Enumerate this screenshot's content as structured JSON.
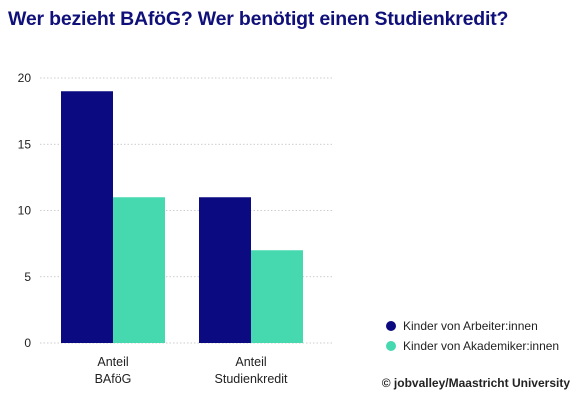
{
  "chart_data": {
    "type": "bar",
    "title": "Wer bezieht BAföG? Wer benötigt einen Studienkredit?",
    "categories": [
      [
        "Anteil",
        "BAföG"
      ],
      [
        "Anteil",
        "Studienkredit"
      ]
    ],
    "series": [
      {
        "name": "Kinder von Arbeiter:innen",
        "values": [
          19,
          11
        ],
        "color": "#0b0a80"
      },
      {
        "name": "Kinder von Akademiker:innen",
        "values": [
          11,
          7
        ],
        "color": "#46d9b0"
      }
    ],
    "ylim": [
      0,
      20
    ],
    "yticks": [
      0,
      5,
      10,
      15,
      20
    ],
    "grid": true,
    "legend": "bottom-right"
  },
  "colors": {
    "title": "#10107a",
    "text": "#222222",
    "grid": "#bdbdbd"
  },
  "source": "© jobvalley/Maastricht University"
}
